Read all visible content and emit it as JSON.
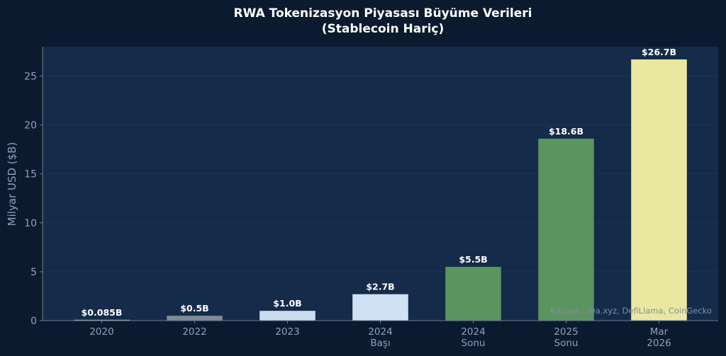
{
  "chart_data": {
    "type": "bar",
    "title": "RWA Tokenizasyon Piyasası Büyüme Verileri",
    "subtitle": "(Stablecoin Hariç)",
    "xlabel": "",
    "ylabel": "Milyar USD ($B)",
    "ylim": [
      0,
      28
    ],
    "yticks": [
      0,
      5,
      10,
      15,
      20,
      25
    ],
    "grid": true,
    "categories": [
      "2020",
      "2022",
      "2023",
      "2024\nBaşı",
      "2024\nSonu",
      "2025\nSonu",
      "Mar\n2026"
    ],
    "values": [
      0.085,
      0.5,
      1.0,
      2.7,
      5.5,
      18.6,
      26.7
    ],
    "value_labels": [
      "$0.085B",
      "$0.5B",
      "$1.0B",
      "$2.7B",
      "$5.5B",
      "$18.6B",
      "$26.7B"
    ],
    "bar_colors": [
      "#b7b7c9",
      "#7f8a99",
      "#c9ddee",
      "#cfe2f3",
      "#5a945e",
      "#5a945e",
      "#eae8a0"
    ],
    "annotation": "Kaynak: rwa.xyz, DefiLlama, CoinGecko"
  },
  "colors": {
    "page_bg": "#0b1a2f",
    "plot_bg": "#142b4a",
    "grid": "#1d3657",
    "axis": "#6a7d96",
    "tick_text": "#8fa0b6",
    "title_text": "#ffffff",
    "label_text": "#ffffff",
    "annotation_text": "#7f8fa5"
  }
}
